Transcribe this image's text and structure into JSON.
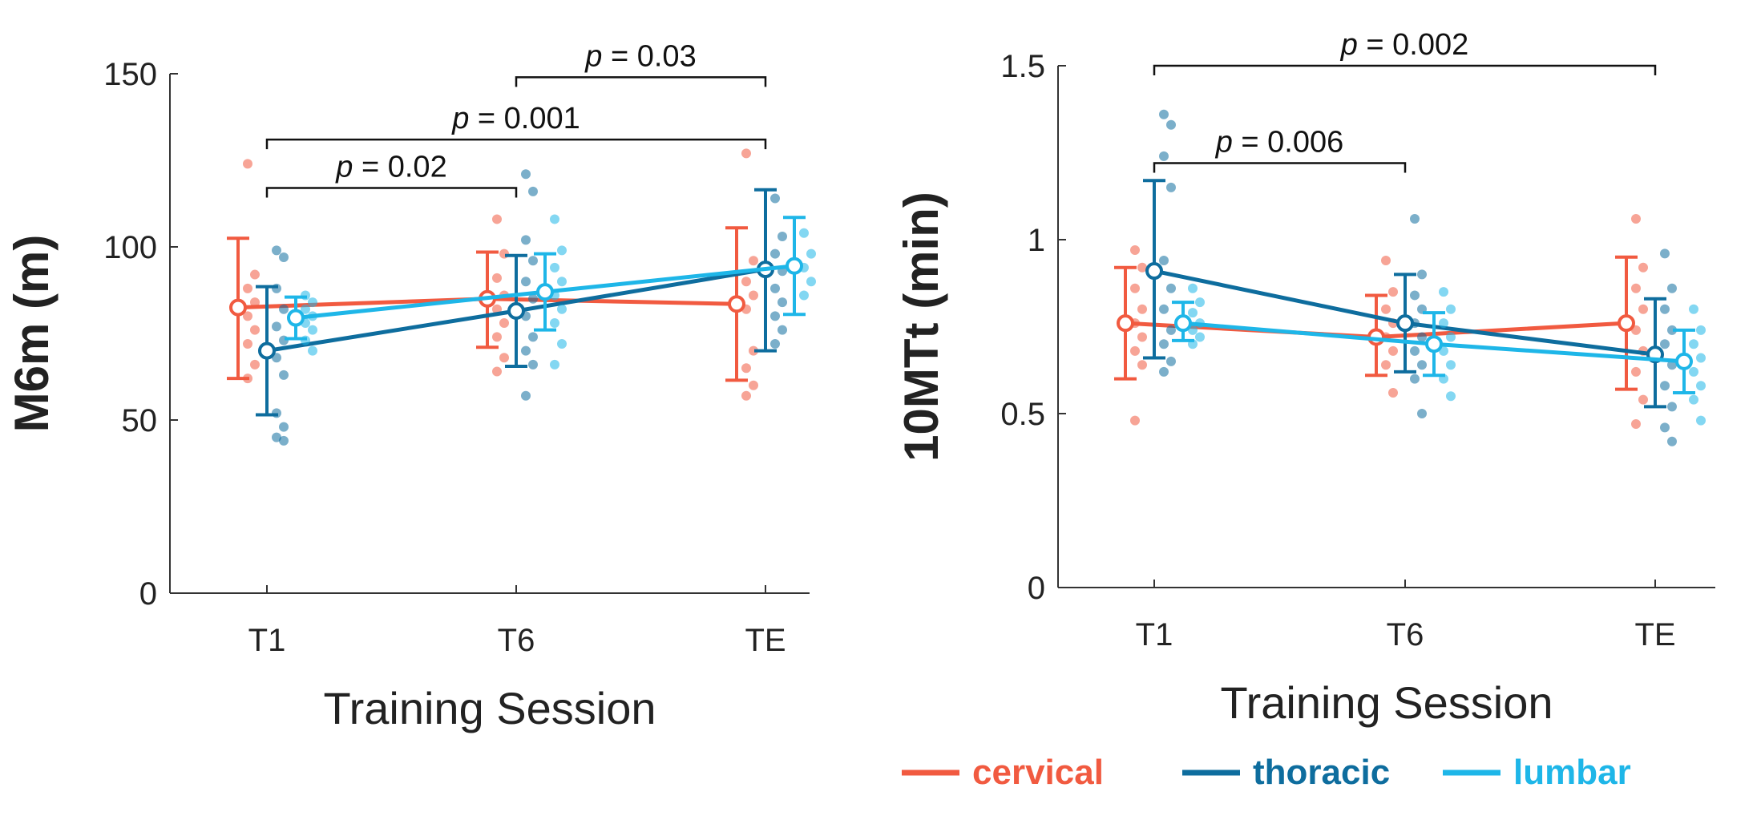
{
  "legend": [
    {
      "name": "cervical",
      "color": "#F15A40"
    },
    {
      "name": "thoracic",
      "color": "#0E6D9E"
    },
    {
      "name": "lumbar",
      "color": "#1EB6E8"
    }
  ],
  "chart_data": [
    {
      "type": "scatter",
      "ylabel": "M6m (m)",
      "xlabel": "Training Session",
      "categories": [
        "T1",
        "T6",
        "TE"
      ],
      "ylim": [
        0,
        150
      ],
      "yticks": [
        0,
        50,
        100,
        150
      ],
      "ytick_labels": [
        "0",
        "50",
        "100",
        "150"
      ],
      "series": [
        {
          "name": "cervical",
          "color": "#F15A40",
          "mean": [
            82.5,
            85,
            83.5
          ],
          "err_low": [
            62,
            71,
            61.5
          ],
          "err_high": [
            102.5,
            98.5,
            105.5
          ],
          "points": [
            [
              124,
              92,
              88,
              84,
              80,
              76,
              72,
              66,
              62
            ],
            [
              108,
              98,
              91,
              86,
              82,
              78,
              74,
              68,
              64
            ],
            [
              127,
              96,
              90,
              86,
              82,
              70,
              65,
              60,
              57
            ]
          ]
        },
        {
          "name": "thoracic",
          "color": "#0E6D9E",
          "mean": [
            70,
            81.5,
            93.5
          ],
          "err_low": [
            51.5,
            65.5,
            70
          ],
          "err_high": [
            88.5,
            97.5,
            116.5
          ],
          "points": [
            [
              99,
              97,
              88,
              82,
              77,
              73,
              68,
              63,
              52,
              48,
              45,
              44
            ],
            [
              121,
              116,
              102,
              96,
              90,
              85,
              80,
              74,
              70,
              66,
              57
            ],
            [
              114,
              103,
              98,
              93,
              88,
              84,
              80,
              76,
              72
            ]
          ]
        },
        {
          "name": "lumbar",
          "color": "#1EB6E8",
          "mean": [
            79.5,
            87,
            94.5
          ],
          "err_low": [
            73.5,
            76,
            80.5
          ],
          "err_high": [
            85.5,
            98,
            108.5
          ],
          "points": [
            [
              86,
              84,
              82,
              80,
              78,
              76,
              73,
              70
            ],
            [
              108,
              99,
              94,
              90,
              86,
              82,
              78,
              72,
              66
            ],
            [
              104,
              98,
              94,
              90,
              86
            ]
          ]
        }
      ],
      "brackets": [
        {
          "from": "T1",
          "to": "T6",
          "y": 117,
          "p_label": "p",
          "eq_label": " = 0.02"
        },
        {
          "from": "T1",
          "to": "TE",
          "y": 131,
          "p_label": "p",
          "eq_label": " = 0.001"
        },
        {
          "from": "T6",
          "to": "TE",
          "y": 149,
          "p_label": "p",
          "eq_label": " = 0.03"
        }
      ]
    },
    {
      "type": "scatter",
      "ylabel": "10MTt (min)",
      "xlabel": "Training Session",
      "categories": [
        "T1",
        "T6",
        "TE"
      ],
      "ylim": [
        0,
        1.5
      ],
      "yticks": [
        0,
        0.5,
        1,
        1.5
      ],
      "ytick_labels": [
        "0",
        "0.5",
        "1",
        "1.5"
      ],
      "series": [
        {
          "name": "cervical",
          "color": "#F15A40",
          "mean": [
            0.76,
            0.72,
            0.76
          ],
          "err_low": [
            0.6,
            0.61,
            0.57
          ],
          "err_high": [
            0.92,
            0.84,
            0.95
          ],
          "points": [
            [
              0.97,
              0.92,
              0.86,
              0.8,
              0.76,
              0.72,
              0.68,
              0.64,
              0.48
            ],
            [
              0.94,
              0.85,
              0.8,
              0.76,
              0.72,
              0.68,
              0.64,
              0.56
            ],
            [
              1.06,
              0.92,
              0.86,
              0.8,
              0.74,
              0.68,
              0.62,
              0.54,
              0.47
            ]
          ]
        },
        {
          "name": "thoracic",
          "color": "#0E6D9E",
          "mean": [
            0.91,
            0.76,
            0.67
          ],
          "err_low": [
            0.66,
            0.62,
            0.52
          ],
          "err_high": [
            1.17,
            0.9,
            0.83
          ],
          "points": [
            [
              1.36,
              1.33,
              1.24,
              1.15,
              0.94,
              0.86,
              0.8,
              0.74,
              0.7,
              0.65,
              0.62
            ],
            [
              1.06,
              0.9,
              0.84,
              0.8,
              0.76,
              0.72,
              0.68,
              0.64,
              0.6,
              0.5
            ],
            [
              0.96,
              0.86,
              0.8,
              0.74,
              0.7,
              0.64,
              0.58,
              0.52,
              0.46,
              0.42
            ]
          ]
        },
        {
          "name": "lumbar",
          "color": "#1EB6E8",
          "mean": [
            0.76,
            0.7,
            0.65
          ],
          "err_low": [
            0.71,
            0.61,
            0.56
          ],
          "err_high": [
            0.82,
            0.79,
            0.74
          ],
          "points": [
            [
              0.86,
              0.82,
              0.79,
              0.76,
              0.74,
              0.72,
              0.7
            ],
            [
              0.85,
              0.8,
              0.76,
              0.72,
              0.68,
              0.64,
              0.6,
              0.55
            ],
            [
              0.8,
              0.74,
              0.7,
              0.66,
              0.62,
              0.58,
              0.54,
              0.48
            ]
          ]
        }
      ],
      "brackets": [
        {
          "from": "T1",
          "to": "T6",
          "y": 1.22,
          "p_label": "p",
          "eq_label": " = 0.006"
        },
        {
          "from": "T1",
          "to": "TE",
          "y": 1.5,
          "p_label": "p",
          "eq_label": " = 0.002"
        }
      ]
    }
  ]
}
